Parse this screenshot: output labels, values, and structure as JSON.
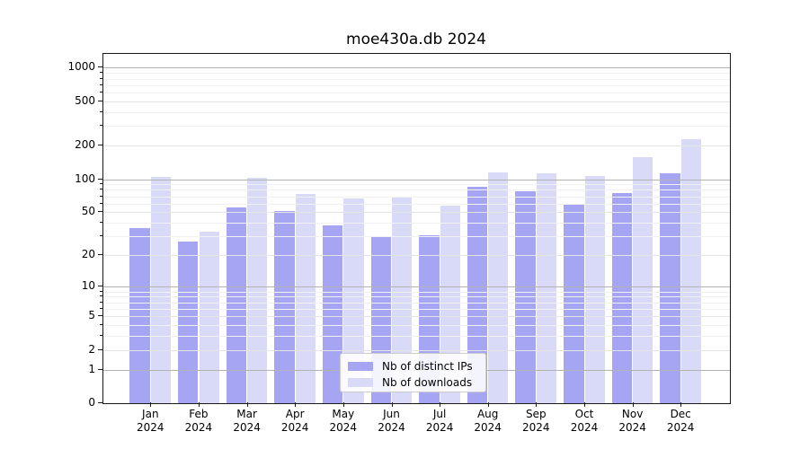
{
  "chart_data": {
    "type": "bar",
    "title": "moe430a.db 2024",
    "x": {
      "months": [
        "Jan",
        "Feb",
        "Mar",
        "Apr",
        "May",
        "Jun",
        "Jul",
        "Aug",
        "Sep",
        "Oct",
        "Nov",
        "Dec"
      ],
      "year": "2024"
    },
    "series": [
      {
        "name": "Nb of distinct IPs",
        "color": "#a5a5f3",
        "values": [
          36,
          27,
          55,
          51,
          38,
          30,
          31,
          85,
          78,
          59,
          75,
          112
        ]
      },
      {
        "name": "Nb of downloads",
        "color": "#d9d9f8",
        "values": [
          104,
          33,
          102,
          74,
          67,
          68,
          58,
          115,
          112,
          107,
          157,
          230
        ]
      }
    ],
    "yscale": "log1p",
    "y_ticks": [
      0,
      1,
      2,
      5,
      10,
      20,
      50,
      100,
      200,
      500,
      1000
    ],
    "y_minor_ticks": [
      3,
      4,
      6,
      7,
      8,
      9,
      30,
      40,
      60,
      70,
      80,
      90,
      300,
      400,
      600,
      700,
      800,
      900
    ],
    "ylim": [
      0,
      1330
    ],
    "xlabel": "",
    "ylabel": "",
    "grid": true,
    "legend_position": "lower-center"
  },
  "style": {
    "background": "#ffffff",
    "spine": "#1a1a1a",
    "grid_major": "#b3b3b3",
    "grid_mid": "#e4e4e4",
    "grid_minor": "#f1f1f1",
    "bar_color_distinct_ips": "#a5a5f3",
    "bar_color_downloads": "#d9d9f8",
    "legend_border": "#cccccc"
  }
}
